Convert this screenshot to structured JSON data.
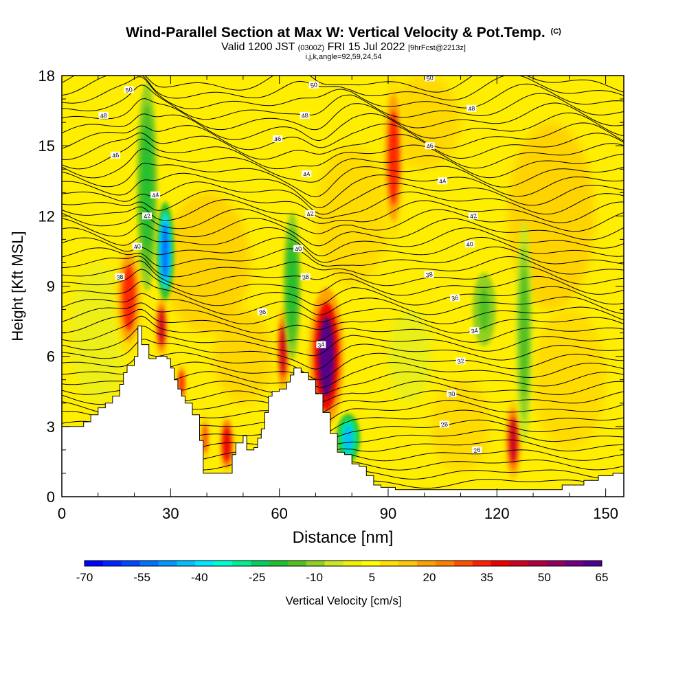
{
  "title": {
    "main": "Wind-Parallel Section at Max W: Vertical Velocity & Pot.Temp.",
    "copyright": "(C)",
    "valid_prefix": "Valid 1200 JST",
    "valid_utc": "(0300Z)",
    "valid_date": "FRI 15 Jul 2022",
    "forecast": "[9hrFcst@2213z]",
    "indices": "i,j,k,angle=92,59,24,54"
  },
  "chart_data": {
    "type": "heatmap",
    "xlabel": "Distance [nm]",
    "ylabel": "Height [Kft MSL]",
    "xlim": [
      0,
      155
    ],
    "ylim": [
      0,
      18
    ],
    "x_ticks": [
      0,
      30,
      60,
      90,
      120,
      150
    ],
    "y_ticks": [
      0,
      3,
      6,
      9,
      12,
      15,
      18
    ],
    "colorbar": {
      "label": "Vertical Velocity [cm/s]",
      "tick_labels": [
        -70,
        -55,
        -40,
        -25,
        -10,
        5,
        20,
        35,
        50,
        65
      ],
      "levels": [
        -70,
        -65,
        -60,
        -55,
        -50,
        -45,
        -40,
        -35,
        -30,
        -25,
        -20,
        -15,
        -10,
        -5,
        0,
        5,
        10,
        15,
        20,
        25,
        30,
        35,
        40,
        45,
        50,
        55,
        60,
        65
      ],
      "colors": [
        "#0000ff",
        "#0024ff",
        "#0048ff",
        "#0070ff",
        "#0098ff",
        "#00c0ff",
        "#00e8ff",
        "#00ffd0",
        "#00f090",
        "#00d060",
        "#20c030",
        "#50c020",
        "#90d020",
        "#c8e820",
        "#f0f000",
        "#ffff00",
        "#ffe000",
        "#ffc800",
        "#ffa000",
        "#ff8000",
        "#ff5000",
        "#ff2000",
        "#ee0000",
        "#d00020",
        "#b00040",
        "#900060",
        "#700080",
        "#500090"
      ]
    },
    "theta_contours": {
      "units": "K (offset labels)",
      "levels": [
        26,
        28,
        30,
        32,
        34,
        36,
        38,
        40,
        42,
        44,
        46,
        48,
        50
      ],
      "labels": [
        {
          "value": "50",
          "x": 18.5,
          "y": 17.4
        },
        {
          "value": "48",
          "x": 11.5,
          "y": 16.3
        },
        {
          "value": "46",
          "x": 14.8,
          "y": 14.6
        },
        {
          "value": "44",
          "x": 25.8,
          "y": 12.9
        },
        {
          "value": "42",
          "x": 23.5,
          "y": 12.0
        },
        {
          "value": "40",
          "x": 20.8,
          "y": 10.7
        },
        {
          "value": "38",
          "x": 16.0,
          "y": 9.4
        },
        {
          "value": "36",
          "x": 55.3,
          "y": 7.9
        },
        {
          "value": "34",
          "x": 71.5,
          "y": 6.5
        },
        {
          "value": "32",
          "x": 110.0,
          "y": 5.8
        },
        {
          "value": "30",
          "x": 107.5,
          "y": 4.4
        },
        {
          "value": "28",
          "x": 105.5,
          "y": 3.1
        },
        {
          "value": "26",
          "x": 114.5,
          "y": 2.0
        },
        {
          "value": "34",
          "x": 113.8,
          "y": 7.1
        },
        {
          "value": "36",
          "x": 108.4,
          "y": 8.5
        },
        {
          "value": "38",
          "x": 101.3,
          "y": 9.5
        },
        {
          "value": "38",
          "x": 67.2,
          "y": 9.4
        },
        {
          "value": "40",
          "x": 65.2,
          "y": 10.6
        },
        {
          "value": "40",
          "x": 112.5,
          "y": 10.8
        },
        {
          "value": "42",
          "x": 68.5,
          "y": 12.1
        },
        {
          "value": "42",
          "x": 113.5,
          "y": 12.0
        },
        {
          "value": "44",
          "x": 67.5,
          "y": 13.8
        },
        {
          "value": "44",
          "x": 105.0,
          "y": 13.5
        },
        {
          "value": "46",
          "x": 59.5,
          "y": 15.3
        },
        {
          "value": "46",
          "x": 101.5,
          "y": 15.0
        },
        {
          "value": "48",
          "x": 67.0,
          "y": 16.3
        },
        {
          "value": "48",
          "x": 113.0,
          "y": 16.6
        },
        {
          "value": "50",
          "x": 69.5,
          "y": 17.6
        },
        {
          "value": "50",
          "x": 101.5,
          "y": 17.9
        }
      ]
    },
    "terrain": [
      [
        0,
        3.0
      ],
      [
        4,
        3.0
      ],
      [
        6,
        3.2
      ],
      [
        8,
        3.5
      ],
      [
        10,
        3.8
      ],
      [
        12,
        4.0
      ],
      [
        14,
        4.3
      ],
      [
        16,
        4.8
      ],
      [
        17,
        5.3
      ],
      [
        18,
        5.6
      ],
      [
        20,
        6.0
      ],
      [
        21,
        7.3
      ],
      [
        22,
        6.5
      ],
      [
        24,
        5.9
      ],
      [
        26,
        6.0
      ],
      [
        28,
        6.0
      ],
      [
        29,
        5.9
      ],
      [
        30,
        5.5
      ],
      [
        31,
        5.0
      ],
      [
        32,
        4.6
      ],
      [
        33,
        4.3
      ],
      [
        34,
        4.0
      ],
      [
        36,
        3.5
      ],
      [
        38,
        2.4
      ],
      [
        39,
        1.0
      ],
      [
        42,
        1.0
      ],
      [
        46,
        1.0
      ],
      [
        47,
        1.8
      ],
      [
        48,
        2.3
      ],
      [
        50,
        2.6
      ],
      [
        51,
        2.0
      ],
      [
        53,
        2.1
      ],
      [
        54,
        2.5
      ],
      [
        55,
        2.9
      ],
      [
        56,
        3.6
      ],
      [
        57,
        4.3
      ],
      [
        58,
        4.5
      ],
      [
        60,
        4.6
      ],
      [
        62,
        4.9
      ],
      [
        63,
        5.2
      ],
      [
        64,
        5.5
      ],
      [
        66,
        5.3
      ],
      [
        68,
        5.0
      ],
      [
        70,
        4.4
      ],
      [
        72,
        3.6
      ],
      [
        74,
        2.7
      ],
      [
        76,
        1.9
      ],
      [
        78,
        1.8
      ],
      [
        80,
        1.4
      ],
      [
        82,
        1.3
      ],
      [
        84,
        0.9
      ],
      [
        86,
        0.5
      ],
      [
        88,
        0.4
      ],
      [
        92,
        0.3
      ],
      [
        100,
        0.3
      ],
      [
        110,
        0.3
      ],
      [
        120,
        0.3
      ],
      [
        130,
        0.3
      ],
      [
        138,
        0.5
      ],
      [
        144,
        0.7
      ],
      [
        148,
        0.9
      ],
      [
        152,
        1.0
      ],
      [
        155,
        1.0
      ]
    ],
    "features": [
      {
        "kind": "updraft",
        "x": 91.5,
        "y_from": 11.2,
        "y_to": 17.8,
        "w_peak": 38,
        "width": 2.0
      },
      {
        "kind": "updraft",
        "x": 73.0,
        "y_from": 3.2,
        "y_to": 8.8,
        "w_peak": 65,
        "width": 3.0
      },
      {
        "kind": "updraft",
        "x": 18.5,
        "y_from": 6.2,
        "y_to": 10.8,
        "w_peak": 35,
        "width": 2.5
      },
      {
        "kind": "updraft",
        "x": 27.5,
        "y_from": 6.0,
        "y_to": 8.5,
        "w_peak": 45,
        "width": 1.2
      },
      {
        "kind": "updraft",
        "x": 61.0,
        "y_from": 4.5,
        "y_to": 8.0,
        "w_peak": 45,
        "width": 1.2
      },
      {
        "kind": "updraft",
        "x": 45.5,
        "y_from": 1.0,
        "y_to": 3.5,
        "w_peak": 40,
        "width": 1.5
      },
      {
        "kind": "updraft",
        "x": 124.5,
        "y_from": 0.8,
        "y_to": 4.0,
        "w_peak": 45,
        "width": 1.5
      },
      {
        "kind": "updraft",
        "x": 33.0,
        "y_from": 4.0,
        "y_to": 5.7,
        "w_peak": 35,
        "width": 1.0
      },
      {
        "kind": "updraft",
        "x": 39.5,
        "y_from": 1.5,
        "y_to": 3.5,
        "w_peak": 30,
        "width": 1.0
      },
      {
        "kind": "downdraft",
        "x": 28.5,
        "y_from": 8.5,
        "y_to": 12.5,
        "w_peak": -55,
        "width": 1.5
      },
      {
        "kind": "downdraft",
        "x": 79.0,
        "y_from": 1.5,
        "y_to": 3.5,
        "w_peak": -45,
        "width": 2.0
      },
      {
        "kind": "downdraft",
        "x": 23.5,
        "y_from": 9.0,
        "y_to": 17.5,
        "w_peak": -20,
        "width": 1.8
      },
      {
        "kind": "downdraft",
        "x": 63.5,
        "y_from": 6.0,
        "y_to": 12.0,
        "w_peak": -20,
        "width": 1.5
      },
      {
        "kind": "downdraft",
        "x": 116.5,
        "y_from": 6.5,
        "y_to": 9.5,
        "w_peak": -15,
        "width": 2.0
      },
      {
        "kind": "downdraft",
        "x": 127.5,
        "y_from": 2.5,
        "y_to": 11.5,
        "w_peak": -12,
        "width": 1.5
      }
    ]
  }
}
